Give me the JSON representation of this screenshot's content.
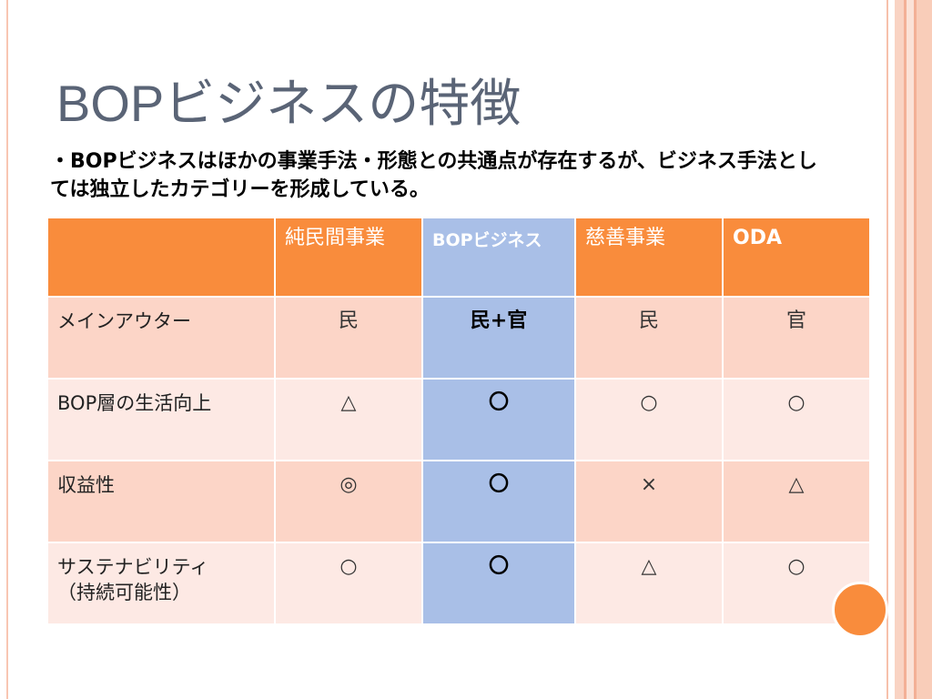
{
  "slide": {
    "title": "BOPビジネスの特徴",
    "body_lines": [
      "・BOPビジネスはほかの事業手法・形態との共通点が存在するが、ビジネス手法とし",
      "ては独立したカテゴリーを形成している。"
    ]
  },
  "table": {
    "header": [
      "",
      "純民間事業",
      "BOPビジネス",
      "慈善事業",
      "ODA"
    ],
    "rows": [
      {
        "label": "メインアウター",
        "cells": [
          "民",
          "民+官",
          "民",
          "官"
        ]
      },
      {
        "label": "BOP層の生活向上",
        "cells": [
          "△",
          "〇",
          "○",
          "○"
        ]
      },
      {
        "label": "収益性",
        "cells": [
          "◎",
          "〇",
          "×",
          "△"
        ]
      },
      {
        "label": "サステナビリティ\n（持続可能性）",
        "cells": [
          "○",
          "〇",
          "△",
          "○"
        ]
      }
    ]
  },
  "colors": {
    "title": "#5a6476",
    "orange": "#f98c3c",
    "blue": "#a9bfe7",
    "row-dark": "#fcd5c7",
    "row-light": "#fde9e4",
    "stripe": "#f8c6b2"
  }
}
